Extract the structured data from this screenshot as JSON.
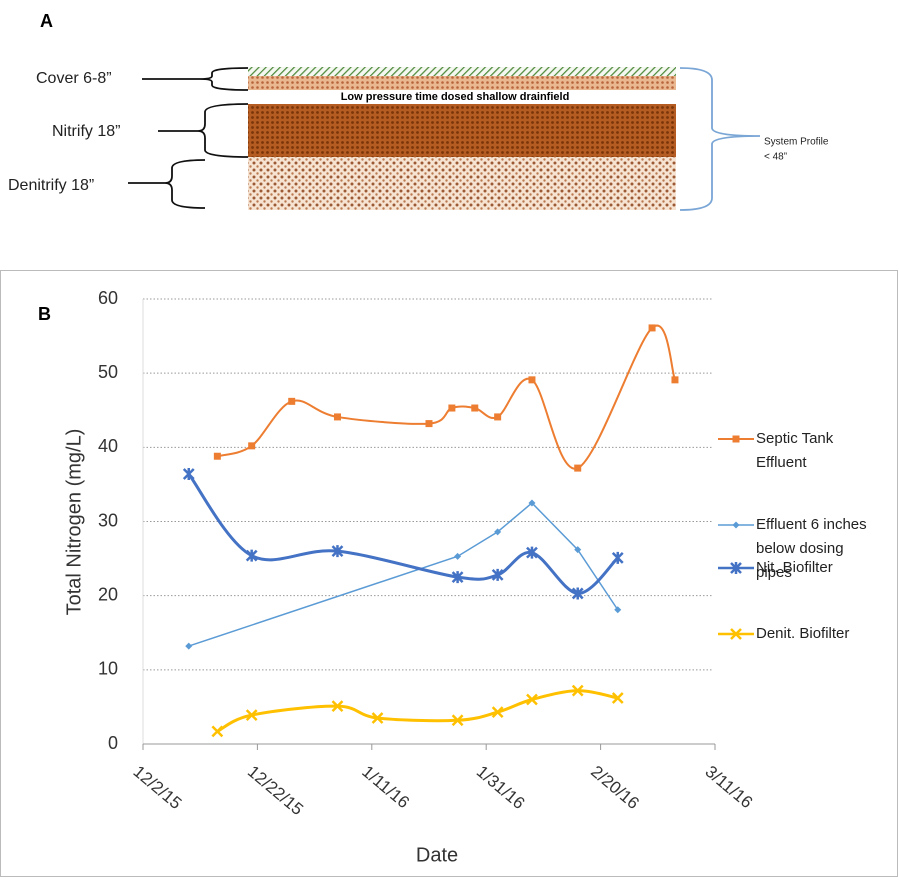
{
  "panel_a": {
    "label": "A",
    "layers": [
      "Cover 6-8”",
      "Nitrify 18”",
      "Denitrify 18”"
    ],
    "drainfield_label": "Low pressure time dosed shallow drainfield",
    "profile_label": [
      "System Profile",
      "< 48”"
    ]
  },
  "chart_data": {
    "type": "line",
    "panel_label": "B",
    "y_label": "Total Nitrogen (mg/L)",
    "x_label": "Date",
    "xlim": [
      "2015-12-02",
      "2016-03-11"
    ],
    "xticks": [
      {
        "value": "2015-12-02",
        "label": "12/2/15"
      },
      {
        "value": "2015-12-22",
        "label": "12/22/15"
      },
      {
        "value": "2016-01-11",
        "label": "1/11/16"
      },
      {
        "value": "2016-01-31",
        "label": "1/31/16"
      },
      {
        "value": "2016-02-20",
        "label": "2/20/16"
      },
      {
        "value": "2016-03-11",
        "label": "3/11/16"
      }
    ],
    "ylim": [
      0,
      60
    ],
    "yticks": [
      0,
      10,
      20,
      30,
      40,
      50,
      60
    ],
    "grid": true,
    "series": [
      {
        "name": "Septic Tank Effluent",
        "color": "#ed7d31",
        "marker": "square",
        "smooth": true,
        "width": 2,
        "x": [
          "2015-12-15",
          "2015-12-21",
          "2015-12-28",
          "2016-01-05",
          "2016-01-21",
          "2016-01-25",
          "2016-01-29",
          "2016-02-02",
          "2016-02-08",
          "2016-02-16",
          "2016-02-29",
          "2016-03-04"
        ],
        "values": [
          38.8,
          40.2,
          46.2,
          44.1,
          43.2,
          45.3,
          45.3,
          44.1,
          49.1,
          37.2,
          56.1,
          49.1
        ]
      },
      {
        "name": "Effluent 6 inches below dosing pipes",
        "color": "#5b9bd5",
        "marker": "diamond",
        "smooth": false,
        "width": 1.5,
        "x": [
          "2015-12-10",
          "2016-01-26",
          "2016-02-02",
          "2016-02-08",
          "2016-02-16",
          "2016-02-23"
        ],
        "values": [
          13.2,
          25.3,
          28.6,
          32.5,
          26.2,
          18.1
        ]
      },
      {
        "name": "Nit. Biofilter",
        "color": "#4472c4",
        "marker": "star",
        "smooth": true,
        "width": 3,
        "x": [
          "2015-12-10",
          "2015-12-21",
          "2016-01-05",
          "2016-01-26",
          "2016-02-02",
          "2016-02-08",
          "2016-02-16",
          "2016-02-23"
        ],
        "values": [
          36.4,
          25.4,
          26.0,
          22.5,
          22.8,
          25.8,
          20.3,
          25.1
        ]
      },
      {
        "name": "Denit. Biofilter",
        "color": "#ffc000",
        "marker": "x",
        "smooth": true,
        "width": 3,
        "x": [
          "2015-12-15",
          "2015-12-21",
          "2016-01-05",
          "2016-01-12",
          "2016-01-26",
          "2016-02-02",
          "2016-02-08",
          "2016-02-16",
          "2016-02-23"
        ],
        "values": [
          1.7,
          3.9,
          5.1,
          3.5,
          3.2,
          4.3,
          6.0,
          7.2,
          6.2
        ]
      }
    ]
  }
}
